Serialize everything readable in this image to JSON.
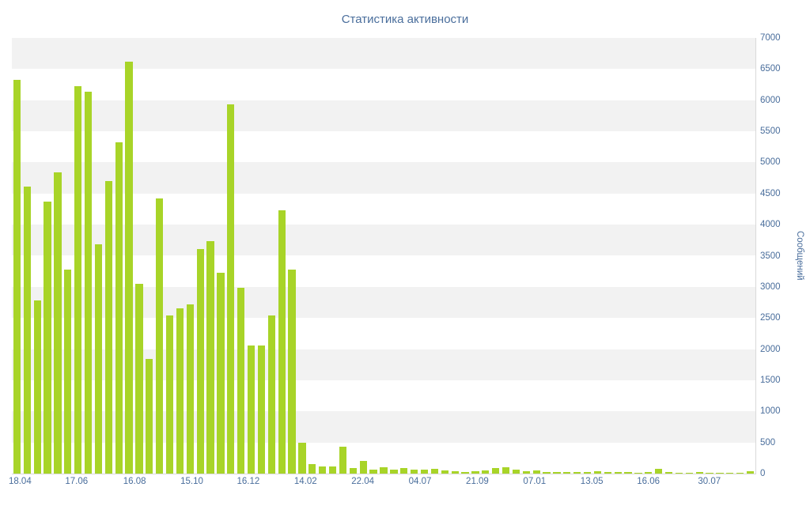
{
  "title": "Статистика активности",
  "chart_data": {
    "type": "bar",
    "title": "Статистика активности",
    "xlabel": "",
    "ylabel": "Сообщений",
    "ylim": [
      0,
      7000
    ],
    "y_tick_step": 500,
    "y_axis_side": "right",
    "legend": "none",
    "grid": "alternating-horizontal-bands",
    "bar_color": "#a8d428",
    "band_color": "#f2f2f2",
    "text_color": "#4a6e9c",
    "axis_line_color": "#d9d9d9",
    "y_tick_labels": [
      "0",
      "500",
      "1000",
      "1500",
      "2000",
      "2500",
      "3000",
      "3500",
      "4000",
      "4500",
      "5000",
      "5500",
      "6000",
      "6500",
      "7000"
    ],
    "x_tick_labels": [
      {
        "label": "18.04",
        "pos": 0.011
      },
      {
        "label": "17.06",
        "pos": 0.087
      },
      {
        "label": "16.08",
        "pos": 0.165
      },
      {
        "label": "15.10",
        "pos": 0.242
      },
      {
        "label": "16.12",
        "pos": 0.318
      },
      {
        "label": "14.02",
        "pos": 0.395
      },
      {
        "label": "22.04",
        "pos": 0.472
      },
      {
        "label": "04.07",
        "pos": 0.549
      },
      {
        "label": "21.09",
        "pos": 0.626
      },
      {
        "label": "07.01",
        "pos": 0.703
      },
      {
        "label": "13.05",
        "pos": 0.78
      },
      {
        "label": "16.06",
        "pos": 0.856
      },
      {
        "label": "30.07",
        "pos": 0.938
      }
    ],
    "values": [
      6330,
      4610,
      2780,
      4370,
      4840,
      3280,
      6230,
      6130,
      3680,
      4700,
      5320,
      6620,
      3050,
      1840,
      4420,
      2540,
      2660,
      2720,
      3610,
      3740,
      3230,
      5930,
      2980,
      2060,
      2060,
      2540,
      4230,
      3280,
      490,
      150,
      120,
      120,
      430,
      90,
      200,
      70,
      100,
      60,
      90,
      70,
      60,
      80,
      50,
      40,
      30,
      40,
      50,
      90,
      100,
      60,
      40,
      50,
      30,
      20,
      30,
      20,
      30,
      40,
      20,
      30,
      20,
      10,
      20,
      80,
      20,
      10,
      10,
      20,
      10,
      10,
      10,
      10,
      40
    ]
  }
}
